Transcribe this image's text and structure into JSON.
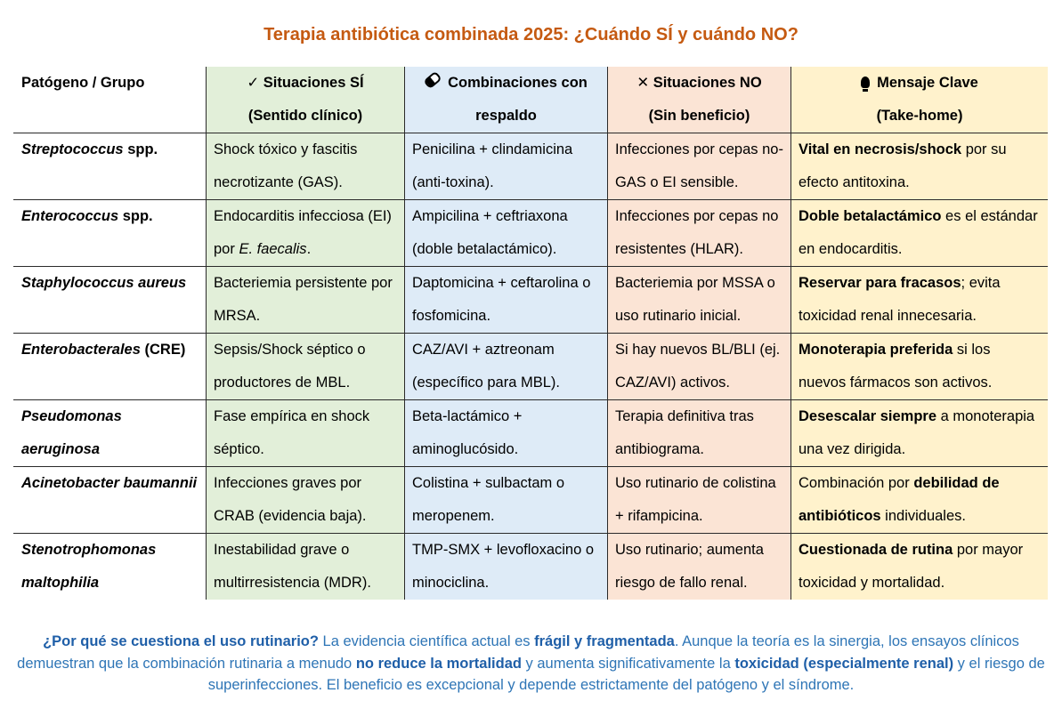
{
  "title": "Terapia antibiótica combinada 2025: ¿Cuándo SÍ y cuándo NO?",
  "headers": {
    "col0": "Patógeno / Grupo",
    "col1_line1": "✓ Situaciones SÍ",
    "col1_line2": "(Sentido clínico)",
    "col2_line1": "Combinaciones con",
    "col2_line2": "respaldo",
    "col3_line1": "✕ Situaciones NO",
    "col3_line2": "(Sin beneficio)",
    "col4_line1": "Mensaje Clave",
    "col4_line2": "(Take-home)",
    "col2_icon": "pill-icon",
    "col4_icon": "lightbulb-icon"
  },
  "rows": [
    {
      "pathogen_a": "Streptococcus",
      "pathogen_b": " spp.",
      "si": "Shock tóxico y fascitis necrotizante (GAS).",
      "combo": "Penicilina + clindamicina (anti-toxina).",
      "no": "Infecciones por cepas no-GAS o EI sensible.",
      "key_bold": "Vital en necrosis/shock",
      "key_rest": " por su efecto antitoxina."
    },
    {
      "pathogen_a": "Enterococcus",
      "pathogen_b": " spp.",
      "si_a": "Endocarditis infecciosa (EI) por ",
      "si_b": "E. faecalis",
      "si_c": ".",
      "combo": "Ampicilina + ceftriaxona (doble betalactámico).",
      "no": "Infecciones por cepas no resistentes (HLAR).",
      "key_bold": "Doble betalactámico",
      "key_rest": " es el estándar en endocarditis."
    },
    {
      "pathogen": "Staphylococcus aureus",
      "si": "Bacteriemia persistente por MRSA.",
      "combo": "Daptomicina + ceftarolina o fosfomicina.",
      "no": "Bacteriemia por MSSA o uso rutinario inicial.",
      "key_bold": "Reservar para fracasos",
      "key_rest": "; evita toxicidad renal innecesaria."
    },
    {
      "pathogen_a": "Enterobacterales",
      "pathogen_b": " (CRE)",
      "si": "Sepsis/Shock séptico o productores de MBL.",
      "combo": "CAZ/AVI + aztreonam (específico para MBL).",
      "no": "Si hay nuevos BL/BLI (ej. CAZ/AVI) activos.",
      "key_bold": "Monoterapia preferida",
      "key_rest": " si los nuevos fármacos son activos."
    },
    {
      "pathogen": "Pseudomonas aeruginosa",
      "si": "Fase empírica en shock séptico.",
      "combo": "Beta-lactámico + aminoglucósido.",
      "no": "Terapia definitiva tras antibiograma.",
      "key_bold": "Desescalar siempre",
      "key_rest": " a monoterapia una vez dirigida."
    },
    {
      "pathogen": "Acinetobacter baumannii",
      "si": "Infecciones graves por CRAB (evidencia baja).",
      "combo": "Colistina + sulbactam o meropenem.",
      "no": "Uso rutinario de colistina + rifampicina.",
      "key_pre": "Combinación por ",
      "key_bold": "debilidad de antibióticos",
      "key_rest": " individuales."
    },
    {
      "pathogen": "Stenotrophomonas maltophilia",
      "si": "Inestabilidad grave o multirresistencia (MDR).",
      "combo": "TMP-SMX + levofloxacino o minociclina.",
      "no": "Uso rutinario; aumenta riesgo de fallo renal.",
      "key_bold": "Cuestionada de rutina",
      "key_rest": " por mayor toxicidad y mortalidad."
    }
  ],
  "note": {
    "q": "¿Por qué se cuestiona el uso rutinario?",
    "t1": " La evidencia científica actual es ",
    "b1": "frágil y fragmentada",
    "t2": ". Aunque la teoría es la sinergia, los ensayos clínicos demuestran que la combinación rutinaria a menudo ",
    "b2": "no reduce la mortalidad",
    "t3": " y aumenta significativamente la ",
    "b3": "toxicidad (especialmente renal)",
    "t4": " y el riesgo de superinfecciones. El beneficio es excepcional y depende estrictamente del patógeno y el síndrome."
  },
  "colors": {
    "title": "#c55a11",
    "col_si": "#e2efd9",
    "col_combo": "#deebf7",
    "col_no": "#fbe4d5",
    "col_key": "#fff2cc",
    "note_text": "#2e75b6"
  }
}
